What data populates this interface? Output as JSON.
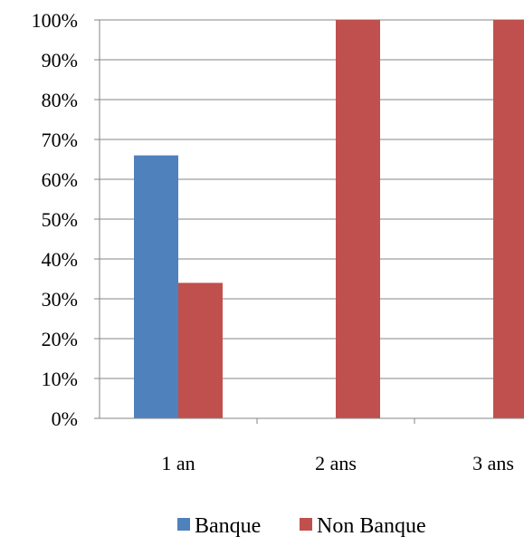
{
  "chart_data": {
    "type": "bar",
    "categories": [
      "1 an",
      "2 ans",
      "3 ans"
    ],
    "series": [
      {
        "name": "Banque",
        "values": [
          66,
          0,
          0
        ],
        "color": "#4F81BD"
      },
      {
        "name": "Non Banque",
        "values": [
          34,
          100,
          100
        ],
        "color": "#C0504D"
      }
    ],
    "ylim": [
      0,
      100
    ],
    "yticks": [
      0,
      10,
      20,
      30,
      40,
      50,
      60,
      70,
      80,
      90,
      100
    ],
    "ytick_labels": [
      "0%",
      "10%",
      "20%",
      "30%",
      "40%",
      "50%",
      "60%",
      "70%",
      "80%",
      "90%",
      "100%"
    ],
    "grid": true,
    "legend_position": "bottom"
  }
}
